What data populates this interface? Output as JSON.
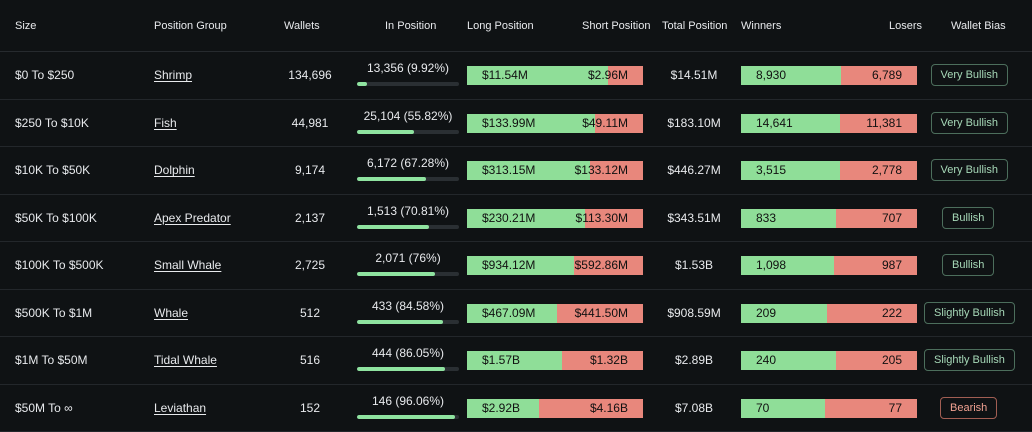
{
  "headers": {
    "size": "Size",
    "group": "Position Group",
    "wallets": "Wallets",
    "in_position": "In Position",
    "long": "Long Position",
    "short": "Short Position",
    "total": "Total Position",
    "winners": "Winners",
    "losers": "Losers",
    "bias": "Wallet Bias"
  },
  "colors": {
    "long": "#8fde98",
    "short": "#e8877c",
    "bullish_border": "#4c6e5c",
    "bearish_border": "#a15e53"
  },
  "rows": [
    {
      "size": "$0 To $250",
      "group": "Shrimp",
      "wallets": "134,696",
      "in_position": "13,356 (9.92%)",
      "in_pct": 9.92,
      "long": "$11.54M",
      "short": "$2.96M",
      "long_frac": 0.8,
      "total": "$14.51M",
      "winners": "8,930",
      "losers": "6,789",
      "win_frac": 0.57,
      "bias": "Very Bullish",
      "bias_type": "bull"
    },
    {
      "size": "$250 To $10K",
      "group": "Fish",
      "wallets": "44,981",
      "in_position": "25,104 (55.82%)",
      "in_pct": 55.82,
      "long": "$133.99M",
      "short": "$49.11M",
      "long_frac": 0.73,
      "total": "$183.10M",
      "winners": "14,641",
      "losers": "11,381",
      "win_frac": 0.56,
      "bias": "Very Bullish",
      "bias_type": "bull"
    },
    {
      "size": "$10K To $50K",
      "group": "Dolphin",
      "wallets": "9,174",
      "in_position": "6,172 (67.28%)",
      "in_pct": 67.28,
      "long": "$313.15M",
      "short": "$133.12M",
      "long_frac": 0.7,
      "total": "$446.27M",
      "winners": "3,515",
      "losers": "2,778",
      "win_frac": 0.56,
      "bias": "Very Bullish",
      "bias_type": "bull"
    },
    {
      "size": "$50K To $100K",
      "group": "Apex Predator",
      "wallets": "2,137",
      "in_position": "1,513 (70.81%)",
      "in_pct": 70.81,
      "long": "$230.21M",
      "short": "$113.30M",
      "long_frac": 0.67,
      "total": "$343.51M",
      "winners": "833",
      "losers": "707",
      "win_frac": 0.54,
      "bias": "Bullish",
      "bias_type": "bull"
    },
    {
      "size": "$100K To $500K",
      "group": "Small Whale",
      "wallets": "2,725",
      "in_position": "2,071 (76%)",
      "in_pct": 76,
      "long": "$934.12M",
      "short": "$592.86M",
      "long_frac": 0.61,
      "total": "$1.53B",
      "winners": "1,098",
      "losers": "987",
      "win_frac": 0.53,
      "bias": "Bullish",
      "bias_type": "bull"
    },
    {
      "size": "$500K To $1M",
      "group": "Whale",
      "wallets": "512",
      "in_position": "433 (84.58%)",
      "in_pct": 84.58,
      "long": "$467.09M",
      "short": "$441.50M",
      "long_frac": 0.51,
      "total": "$908.59M",
      "winners": "209",
      "losers": "222",
      "win_frac": 0.49,
      "bias": "Slightly Bullish",
      "bias_type": "bull"
    },
    {
      "size": "$1M To $50M",
      "group": "Tidal Whale",
      "wallets": "516",
      "in_position": "444 (86.05%)",
      "in_pct": 86.05,
      "long": "$1.57B",
      "short": "$1.32B",
      "long_frac": 0.54,
      "total": "$2.89B",
      "winners": "240",
      "losers": "205",
      "win_frac": 0.54,
      "bias": "Slightly Bullish",
      "bias_type": "bull"
    },
    {
      "size": "$50M To ∞",
      "group": "Leviathan",
      "wallets": "152",
      "in_position": "146 (96.06%)",
      "in_pct": 96.06,
      "long": "$2.92B",
      "short": "$4.16B",
      "long_frac": 0.41,
      "total": "$7.08B",
      "winners": "70",
      "losers": "77",
      "win_frac": 0.48,
      "bias": "Bearish",
      "bias_type": "bear"
    }
  ]
}
